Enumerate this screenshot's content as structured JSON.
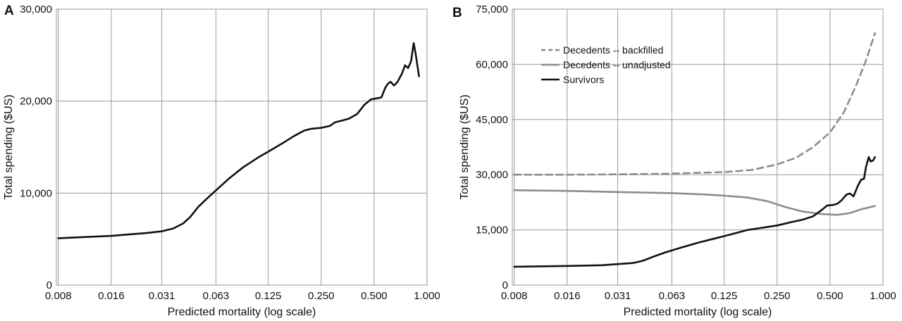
{
  "chart_data": [
    {
      "panel_label": "A",
      "type": "line",
      "xlabel": "Predicted mortality (log scale)",
      "ylabel": "Total spending ($US)",
      "x_scale": "log2",
      "x_ticks": [
        "0.008",
        "0.016",
        "0.031",
        "0.063",
        "0.125",
        "0.250",
        "0.500",
        "1.000"
      ],
      "y_ticks": [
        "0",
        "10,000",
        "20,000",
        "30,000"
      ],
      "xlim": [
        0.0078,
        1.0
      ],
      "ylim": [
        0,
        30000
      ],
      "grid": true,
      "series": [
        {
          "name": "",
          "color": "#111111",
          "dash": "solid",
          "points": [
            [
              0.008,
              5100
            ],
            [
              0.012,
              5250
            ],
            [
              0.016,
              5350
            ],
            [
              0.02,
              5500
            ],
            [
              0.025,
              5650
            ],
            [
              0.031,
              5850
            ],
            [
              0.036,
              6150
            ],
            [
              0.041,
              6700
            ],
            [
              0.045,
              7400
            ],
            [
              0.05,
              8500
            ],
            [
              0.056,
              9400
            ],
            [
              0.063,
              10300
            ],
            [
              0.075,
              11600
            ],
            [
              0.09,
              12800
            ],
            [
              0.11,
              13900
            ],
            [
              0.125,
              14500
            ],
            [
              0.15,
              15400
            ],
            [
              0.175,
              16200
            ],
            [
              0.2,
              16800
            ],
            [
              0.22,
              17000
            ],
            [
              0.25,
              17100
            ],
            [
              0.28,
              17300
            ],
            [
              0.3,
              17700
            ],
            [
              0.33,
              17900
            ],
            [
              0.36,
              18100
            ],
            [
              0.4,
              18600
            ],
            [
              0.44,
              19600
            ],
            [
              0.48,
              20200
            ],
            [
              0.52,
              20300
            ],
            [
              0.55,
              20400
            ],
            [
              0.58,
              21500
            ],
            [
              0.6,
              21900
            ],
            [
              0.62,
              22100
            ],
            [
              0.65,
              21700
            ],
            [
              0.68,
              22100
            ],
            [
              0.72,
              23000
            ],
            [
              0.75,
              23900
            ],
            [
              0.78,
              23600
            ],
            [
              0.81,
              24300
            ],
            [
              0.84,
              26300
            ],
            [
              0.86,
              25200
            ],
            [
              0.88,
              24000
            ],
            [
              0.9,
              22700
            ]
          ]
        }
      ]
    },
    {
      "panel_label": "B",
      "type": "line",
      "xlabel": "Predicted mortality (log scale)",
      "ylabel": "Total spending ($US)",
      "x_scale": "log2",
      "x_ticks": [
        "0.008",
        "0.016",
        "0.031",
        "0.063",
        "0.125",
        "0.250",
        "0.500",
        "1.000"
      ],
      "y_ticks": [
        "0",
        "15,000",
        "30,000",
        "45,000",
        "60,000",
        "75,000"
      ],
      "xlim": [
        0.0078,
        1.0
      ],
      "ylim": [
        0,
        75000
      ],
      "grid": true,
      "legend": "top-left",
      "series": [
        {
          "name": "Decedents -- backfilled",
          "color": "#8c8c8c",
          "dash": "dashed",
          "points": [
            [
              0.008,
              30000
            ],
            [
              0.016,
              30000
            ],
            [
              0.031,
              30100
            ],
            [
              0.063,
              30300
            ],
            [
              0.125,
              30700
            ],
            [
              0.18,
              31300
            ],
            [
              0.25,
              32800
            ],
            [
              0.32,
              34600
            ],
            [
              0.4,
              37500
            ],
            [
              0.5,
              41500
            ],
            [
              0.6,
              47000
            ],
            [
              0.7,
              54000
            ],
            [
              0.8,
              61000
            ],
            [
              0.9,
              68500
            ]
          ]
        },
        {
          "name": "Decedents -- unadjusted",
          "color": "#8c8c8c",
          "dash": "solid",
          "points": [
            [
              0.008,
              25800
            ],
            [
              0.016,
              25600
            ],
            [
              0.031,
              25300
            ],
            [
              0.063,
              25000
            ],
            [
              0.1,
              24600
            ],
            [
              0.125,
              24300
            ],
            [
              0.17,
              23800
            ],
            [
              0.22,
              22800
            ],
            [
              0.28,
              21200
            ],
            [
              0.35,
              20000
            ],
            [
              0.45,
              19300
            ],
            [
              0.55,
              19100
            ],
            [
              0.65,
              19600
            ],
            [
              0.75,
              20600
            ],
            [
              0.9,
              21500
            ]
          ]
        },
        {
          "name": "Survivors",
          "color": "#111111",
          "dash": "solid",
          "points": [
            [
              0.008,
              5000
            ],
            [
              0.016,
              5200
            ],
            [
              0.025,
              5400
            ],
            [
              0.031,
              5700
            ],
            [
              0.038,
              6000
            ],
            [
              0.043,
              6600
            ],
            [
              0.05,
              7800
            ],
            [
              0.058,
              8900
            ],
            [
              0.07,
              10100
            ],
            [
              0.09,
              11600
            ],
            [
              0.125,
              13300
            ],
            [
              0.17,
              15000
            ],
            [
              0.2,
              15500
            ],
            [
              0.25,
              16200
            ],
            [
              0.3,
              17100
            ],
            [
              0.35,
              17800
            ],
            [
              0.4,
              18700
            ],
            [
              0.45,
              20500
            ],
            [
              0.48,
              21600
            ],
            [
              0.52,
              21800
            ],
            [
              0.55,
              22100
            ],
            [
              0.58,
              23000
            ],
            [
              0.62,
              24600
            ],
            [
              0.65,
              24900
            ],
            [
              0.68,
              24100
            ],
            [
              0.72,
              27000
            ],
            [
              0.75,
              28600
            ],
            [
              0.78,
              28900
            ],
            [
              0.8,
              32000
            ],
            [
              0.83,
              34800
            ],
            [
              0.85,
              33600
            ],
            [
              0.88,
              33900
            ],
            [
              0.9,
              34800
            ]
          ]
        }
      ]
    }
  ]
}
